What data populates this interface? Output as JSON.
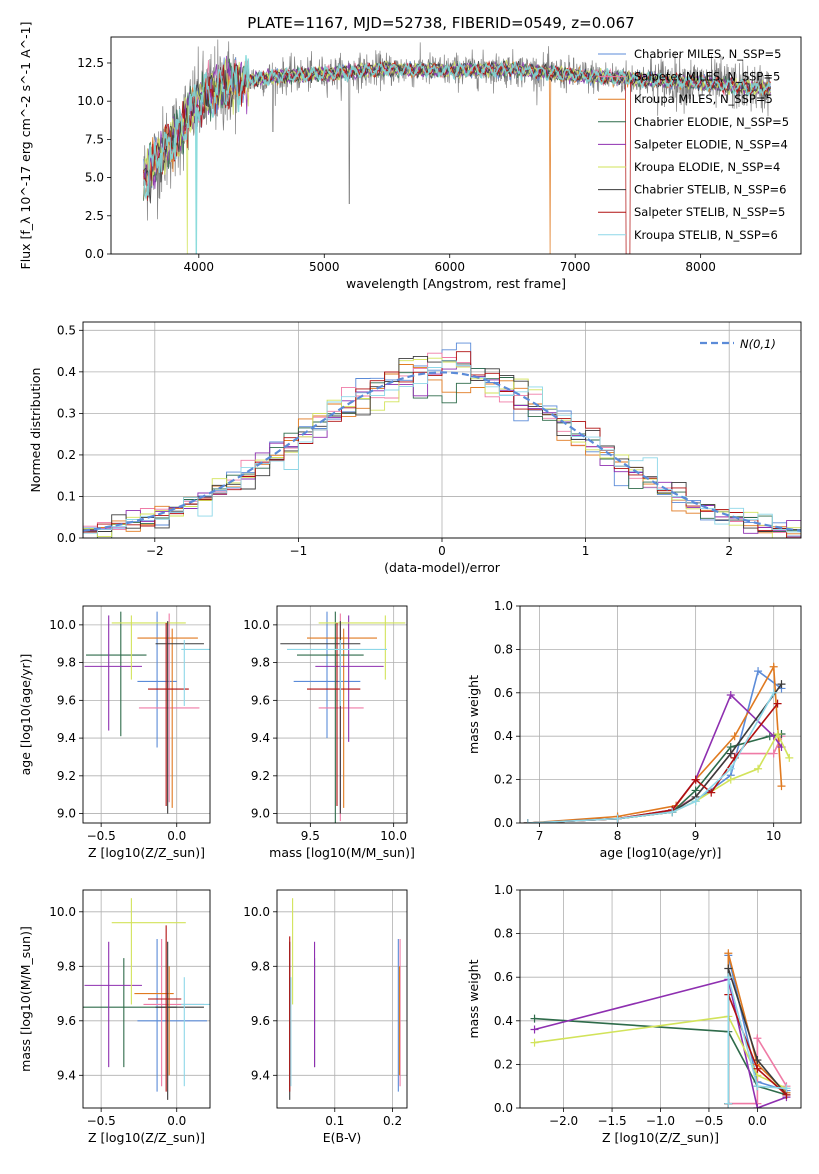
{
  "figure": {
    "title": "PLATE=1167, MJD=52738, FIBERID=0549, z=0.067"
  },
  "models": [
    {
      "name": "Chabrier MILES, N_SSP=5",
      "color": "#5b8bd8"
    },
    {
      "name": "Salpeter MILES, N_SSP=5",
      "color": "#ef7ba6"
    },
    {
      "name": "Kroupa MILES, N_SSP=5",
      "color": "#e07a20"
    },
    {
      "name": "Chabrier ELODIE, N_SSP=5",
      "color": "#2e6b4a"
    },
    {
      "name": "Salpeter ELODIE, N_SSP=4",
      "color": "#8e2fb0"
    },
    {
      "name": "Kroupa ELODIE, N_SSP=4",
      "color": "#d2e35a"
    },
    {
      "name": "Chabrier STELIB, N_SSP=6",
      "color": "#3b3b3b"
    },
    {
      "name": "Salpeter STELIB, N_SSP=5",
      "color": "#b01010"
    },
    {
      "name": "Kroupa STELIB, N_SSP=6",
      "color": "#8ed7e8"
    }
  ],
  "chart_data": [
    {
      "id": "spectrum",
      "type": "line",
      "xlabel": "wavelength [Angstrom, rest frame]",
      "ylabel": "Flux [f_λ 10^-17 erg cm^-2 s^-1 A^-1]",
      "xlim": [
        3300,
        8800
      ],
      "ylim": [
        0,
        14.2
      ],
      "xticks": [
        4000,
        5000,
        6000,
        7000,
        8000
      ],
      "yticks": [
        0.0,
        2.5,
        5.0,
        7.5,
        10.0,
        12.5
      ],
      "data_color": "#808080",
      "model_color": "#7fd8d8",
      "model_knots": {
        "x": [
          3550,
          3650,
          3800,
          3950,
          4100,
          4300,
          4600,
          5000,
          5500,
          6000,
          6500,
          7000,
          7400,
          7600,
          8000,
          8500
        ],
        "y": [
          4.8,
          6.0,
          7.5,
          9.5,
          10.6,
          11.3,
          11.6,
          11.8,
          12.1,
          12.0,
          12.1,
          11.7,
          11.5,
          11.4,
          11.2,
          10.8
        ]
      },
      "legend_position": "top-right"
    },
    {
      "id": "residuals",
      "type": "histogram",
      "xlabel": "(data-model)/error",
      "ylabel": "Normed distribution",
      "xlim": [
        -2.5,
        2.5
      ],
      "ylim": [
        0,
        0.52
      ],
      "xticks": [
        -2,
        -1,
        0,
        1,
        2
      ],
      "yticks": [
        0.0,
        0.1,
        0.2,
        0.3,
        0.4,
        0.5
      ],
      "bin_width": 0.1,
      "reference": {
        "name": "N(0,1)",
        "color": "#5b8bd8"
      },
      "legend_position": "top-right"
    },
    {
      "id": "age_vs_Z",
      "type": "errorbar",
      "xlabel": "Z [log10(Z/Z_sun)]",
      "ylabel": "age [log10(age/yr)]",
      "xlim": [
        -0.62,
        0.22
      ],
      "ylim": [
        8.95,
        10.1
      ],
      "xticks": [
        -0.5,
        0.0
      ],
      "yticks": [
        9.0,
        9.2,
        9.4,
        9.6,
        9.8,
        10.0
      ],
      "points": [
        {
          "x": -0.13,
          "xerr": [
            0.13,
            0.13
          ],
          "y": 9.7,
          "yerr": [
            0.35,
            0.37
          ],
          "model": 0
        },
        {
          "x": -0.05,
          "xerr": [
            0.2,
            0.2
          ],
          "y": 9.56,
          "yerr": [
            0.5,
            0.5
          ],
          "model": 1
        },
        {
          "x": -0.03,
          "xerr": [
            0.23,
            0.17
          ],
          "y": 9.93,
          "yerr": [
            0.9,
            0.05
          ],
          "model": 2
        },
        {
          "x": -0.37,
          "xerr": [
            0.23,
            0.17
          ],
          "y": 9.84,
          "yerr": [
            0.43,
            0.23
          ],
          "model": 3
        },
        {
          "x": -0.45,
          "xerr": [
            0.16,
            0.22
          ],
          "y": 9.78,
          "yerr": [
            0.34,
            0.27
          ],
          "model": 4
        },
        {
          "x": -0.3,
          "xerr": [
            0.13,
            0.36
          ],
          "y": 10.01,
          "yerr": [
            0.3,
            0.04
          ],
          "model": 5
        },
        {
          "x": -0.06,
          "xerr": [
            0.08,
            0.24
          ],
          "y": 9.9,
          "yerr": [
            0.9,
            0.12
          ],
          "model": 6
        },
        {
          "x": -0.07,
          "xerr": [
            0.12,
            0.15
          ],
          "y": 9.66,
          "yerr": [
            0.62,
            0.35
          ],
          "model": 7
        },
        {
          "x": 0.05,
          "xerr": [
            0.02,
            0.2
          ],
          "y": 9.87,
          "yerr": [
            0.3,
            0.05
          ],
          "model": 8
        }
      ]
    },
    {
      "id": "age_vs_mass",
      "type": "errorbar",
      "xlabel": "mass [log10(M/M_sun)]",
      "ylabel": "",
      "xlim": [
        9.3,
        10.08
      ],
      "ylim": [
        8.95,
        10.1
      ],
      "xticks": [
        9.5,
        10.0
      ],
      "yticks": [
        9.0,
        9.2,
        9.4,
        9.6,
        9.8,
        10.0
      ],
      "points": [
        {
          "x": 9.6,
          "xerr": [
            0.2,
            0.2
          ],
          "y": 9.7,
          "yerr": [
            0.3,
            0.37
          ],
          "model": 0
        },
        {
          "x": 9.68,
          "xerr": [
            0.13,
            0.14
          ],
          "y": 9.56,
          "yerr": [
            0.6,
            0.5
          ],
          "model": 1
        },
        {
          "x": 9.7,
          "xerr": [
            0.22,
            0.2
          ],
          "y": 9.93,
          "yerr": [
            0.9,
            0.05
          ],
          "model": 2
        },
        {
          "x": 9.65,
          "xerr": [
            0.23,
            0.17
          ],
          "y": 9.84,
          "yerr": [
            0.9,
            0.23
          ],
          "model": 3
        },
        {
          "x": 9.73,
          "xerr": [
            0.2,
            0.21
          ],
          "y": 9.78,
          "yerr": [
            0.4,
            0.27
          ],
          "model": 4
        },
        {
          "x": 9.95,
          "xerr": [
            0.4,
            0.12
          ],
          "y": 10.01,
          "yerr": [
            0.3,
            0.04
          ],
          "model": 5
        },
        {
          "x": 9.68,
          "xerr": [
            0.36,
            0.12
          ],
          "y": 9.9,
          "yerr": [
            0.9,
            0.12
          ],
          "model": 6
        },
        {
          "x": 9.66,
          "xerr": [
            0.18,
            0.14
          ],
          "y": 9.66,
          "yerr": [
            0.62,
            0.35
          ],
          "model": 7
        },
        {
          "x": 9.68,
          "xerr": [
            0.32,
            0.28
          ],
          "y": 9.87,
          "yerr": [
            0.3,
            0.05
          ],
          "model": 8
        }
      ]
    },
    {
      "id": "weight_vs_age",
      "type": "line",
      "xlabel": "age [log10(age/yr)]",
      "ylabel": "mass weight",
      "xlim": [
        6.75,
        10.35
      ],
      "ylim": [
        0,
        1.0
      ],
      "xticks": [
        7,
        8,
        9,
        10
      ],
      "yticks": [
        0.0,
        0.2,
        0.4,
        0.6,
        0.8,
        1.0
      ],
      "series": [
        {
          "model": 0,
          "x": [
            6.85,
            8.0,
            8.7,
            9.0,
            9.45,
            9.8,
            10.1
          ],
          "y": [
            0.0,
            0.02,
            0.05,
            0.1,
            0.22,
            0.7,
            0.62
          ]
        },
        {
          "model": 1,
          "x": [
            6.85,
            8.0,
            8.7,
            9.0,
            9.45,
            10.0,
            10.1
          ],
          "y": [
            0.0,
            0.02,
            0.06,
            0.12,
            0.32,
            0.32,
            0.4
          ]
        },
        {
          "model": 2,
          "x": [
            6.85,
            8.0,
            8.75,
            9.0,
            9.5,
            10.0,
            10.1
          ],
          "y": [
            0.0,
            0.03,
            0.08,
            0.2,
            0.4,
            0.72,
            0.17
          ]
        },
        {
          "model": 3,
          "x": [
            6.85,
            8.0,
            8.7,
            9.0,
            9.45,
            9.95,
            10.1
          ],
          "y": [
            0.0,
            0.02,
            0.05,
            0.15,
            0.35,
            0.4,
            0.41
          ]
        },
        {
          "model": 4,
          "x": [
            6.85,
            8.0,
            8.7,
            9.0,
            9.45,
            10.0,
            10.1
          ],
          "y": [
            0.0,
            0.02,
            0.06,
            0.2,
            0.59,
            0.4,
            0.35
          ]
        },
        {
          "model": 5,
          "x": [
            6.85,
            8.0,
            8.7,
            9.0,
            9.45,
            9.8,
            10.05,
            10.2
          ],
          "y": [
            0.0,
            0.02,
            0.05,
            0.1,
            0.2,
            0.25,
            0.41,
            0.3
          ]
        },
        {
          "model": 6,
          "x": [
            6.85,
            8.0,
            8.7,
            9.0,
            9.45,
            10.1
          ],
          "y": [
            0.0,
            0.02,
            0.05,
            0.12,
            0.32,
            0.64
          ]
        },
        {
          "model": 7,
          "x": [
            6.85,
            8.0,
            8.7,
            9.0,
            9.2,
            9.5,
            10.05
          ],
          "y": [
            0.0,
            0.02,
            0.06,
            0.2,
            0.14,
            0.3,
            0.55
          ]
        },
        {
          "model": 8,
          "x": [
            6.85,
            8.0,
            8.7,
            9.0,
            9.45,
            10.0
          ],
          "y": [
            0.0,
            0.02,
            0.05,
            0.1,
            0.25,
            0.6
          ]
        }
      ]
    },
    {
      "id": "mass_vs_Z",
      "type": "errorbar",
      "xlabel": "Z [log10(Z/Z_sun)]",
      "ylabel": "mass [log10(M/M_sun)]",
      "xlim": [
        -0.62,
        0.22
      ],
      "ylim": [
        9.28,
        10.08
      ],
      "xticks": [
        -0.5,
        0.0
      ],
      "yticks": [
        9.4,
        9.6,
        9.8,
        10.0
      ],
      "points": [
        {
          "x": -0.13,
          "xerr": [
            0.13,
            0.33
          ],
          "y": 9.6,
          "yerr": [
            0.26,
            0.3
          ],
          "model": 0
        },
        {
          "x": -0.1,
          "xerr": [
            0.12,
            0.28
          ],
          "y": 9.66,
          "yerr": [
            0.3,
            0.24
          ],
          "model": 1
        },
        {
          "x": -0.05,
          "xerr": [
            0.23,
            0.03
          ],
          "y": 9.7,
          "yerr": [
            0.3,
            0.1
          ],
          "model": 2
        },
        {
          "x": -0.35,
          "xerr": [
            0.27,
            0.35
          ],
          "y": 9.65,
          "yerr": [
            0.22,
            0.18
          ],
          "model": 3
        },
        {
          "x": -0.45,
          "xerr": [
            0.16,
            0.22
          ],
          "y": 9.73,
          "yerr": [
            0.3,
            0.16
          ],
          "model": 4
        },
        {
          "x": -0.3,
          "xerr": [
            0.13,
            0.36
          ],
          "y": 9.96,
          "yerr": [
            0.3,
            0.09
          ],
          "model": 5
        },
        {
          "x": -0.06,
          "xerr": [
            0.08,
            0.24
          ],
          "y": 9.65,
          "yerr": [
            0.34,
            0.24
          ],
          "model": 6
        },
        {
          "x": -0.07,
          "xerr": [
            0.12,
            0.1
          ],
          "y": 9.68,
          "yerr": [
            0.34,
            0.27
          ],
          "model": 7
        },
        {
          "x": 0.05,
          "xerr": [
            0.02,
            0.2
          ],
          "y": 9.66,
          "yerr": [
            0.3,
            0.1
          ],
          "model": 8
        }
      ]
    },
    {
      "id": "mass_vs_EBV",
      "type": "errorbar",
      "xlabel": "E(B-V)",
      "ylabel": "",
      "xlim": [
        0.0,
        0.225
      ],
      "ylim": [
        9.28,
        10.08
      ],
      "xticks": [
        0.1,
        0.2
      ],
      "yticks": [
        9.4,
        9.6,
        9.8,
        10.0
      ],
      "points": [
        {
          "x": 0.21,
          "xerr": [
            0,
            0
          ],
          "y": 9.6,
          "yerr": [
            0.26,
            0.3
          ],
          "model": 0
        },
        {
          "x": 0.213,
          "xerr": [
            0,
            0
          ],
          "y": 9.66,
          "yerr": [
            0.3,
            0.24
          ],
          "model": 1
        },
        {
          "x": 0.212,
          "xerr": [
            0,
            0
          ],
          "y": 9.7,
          "yerr": [
            0.3,
            0.1
          ],
          "model": 2
        },
        {
          "x": 0.065,
          "xerr": [
            0,
            0
          ],
          "y": 9.65,
          "yerr": [
            0.22,
            0.18
          ],
          "model": 3
        },
        {
          "x": 0.065,
          "xerr": [
            0,
            0
          ],
          "y": 9.73,
          "yerr": [
            0.3,
            0.16
          ],
          "model": 4
        },
        {
          "x": 0.027,
          "xerr": [
            0,
            0
          ],
          "y": 9.96,
          "yerr": [
            0.3,
            0.09
          ],
          "model": 5
        },
        {
          "x": 0.022,
          "xerr": [
            0,
            0
          ],
          "y": 9.65,
          "yerr": [
            0.34,
            0.24
          ],
          "model": 6
        },
        {
          "x": 0.022,
          "xerr": [
            0,
            0
          ],
          "y": 9.68,
          "yerr": [
            0.34,
            0.23
          ],
          "model": 7
        },
        {
          "x": 0.024,
          "xerr": [
            0,
            0
          ],
          "y": 9.66,
          "yerr": [
            0.3,
            0.1
          ],
          "model": 8
        }
      ]
    },
    {
      "id": "weight_vs_Z",
      "type": "line",
      "xlabel": "Z [log10(Z/Z_sun)]",
      "ylabel": "mass weight",
      "xlim": [
        -2.45,
        0.45
      ],
      "ylim": [
        0,
        1.0
      ],
      "xticks": [
        -2.0,
        -1.5,
        -1.0,
        -0.5,
        0.0
      ],
      "yticks": [
        0.0,
        0.2,
        0.4,
        0.6,
        0.8,
        1.0
      ],
      "series": [
        {
          "model": 0,
          "x": [
            -0.3,
            -0.3,
            0.0,
            0.3
          ],
          "y": [
            0.02,
            0.7,
            0.12,
            0.08
          ]
        },
        {
          "model": 1,
          "x": [
            -0.3,
            0.0,
            0.0,
            0.3
          ],
          "y": [
            0.02,
            0.02,
            0.32,
            0.1
          ]
        },
        {
          "model": 2,
          "x": [
            -0.3,
            -0.3,
            0.0,
            0.3
          ],
          "y": [
            0.02,
            0.71,
            0.2,
            0.07
          ]
        },
        {
          "model": 3,
          "x": [
            -2.3,
            -0.3,
            0.0,
            0.3
          ],
          "y": [
            0.41,
            0.35,
            0.1,
            0.06
          ]
        },
        {
          "model": 4,
          "x": [
            -2.3,
            -0.3,
            0.0,
            0.3
          ],
          "y": [
            0.36,
            0.59,
            0.0,
            0.05
          ]
        },
        {
          "model": 5,
          "x": [
            -2.3,
            -0.3,
            0.0,
            0.3
          ],
          "y": [
            0.3,
            0.42,
            0.15,
            0.09
          ]
        },
        {
          "model": 6,
          "x": [
            -0.3,
            -0.3,
            0.0,
            0.3
          ],
          "y": [
            0.02,
            0.64,
            0.22,
            0.06
          ]
        },
        {
          "model": 7,
          "x": [
            -0.3,
            -0.3,
            0.0,
            0.3
          ],
          "y": [
            0.02,
            0.52,
            0.18,
            0.06
          ]
        },
        {
          "model": 8,
          "x": [
            -0.3,
            -0.3,
            0.0,
            0.3
          ],
          "y": [
            0.02,
            0.6,
            0.1,
            0.09
          ]
        }
      ]
    }
  ]
}
